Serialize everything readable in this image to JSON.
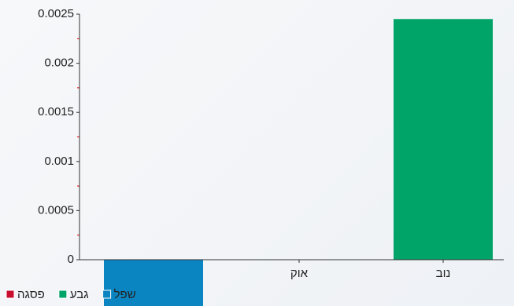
{
  "chart_data": {
    "type": "bar",
    "categories": [
      null,
      "אוק",
      "נוב"
    ],
    "series": [
      {
        "name": "פסגה",
        "color": "#c8102e",
        "values": [
          null,
          null,
          null
        ]
      },
      {
        "name": "גבע",
        "color": "#00a368",
        "values": [
          null,
          null,
          0.00245
        ]
      },
      {
        "name": "שפל",
        "color": "#0a85c2",
        "values": [
          -0.0005,
          null,
          null
        ]
      }
    ],
    "ylim": [
      -0.0005,
      0.0025
    ],
    "yticks": [
      0,
      0.0005,
      0.001,
      0.0015,
      0.002,
      0.0025
    ],
    "yminorticks": [
      0.00025,
      0.00075,
      0.00125,
      0.00175,
      0.00225
    ],
    "legend": "bottom-left"
  }
}
